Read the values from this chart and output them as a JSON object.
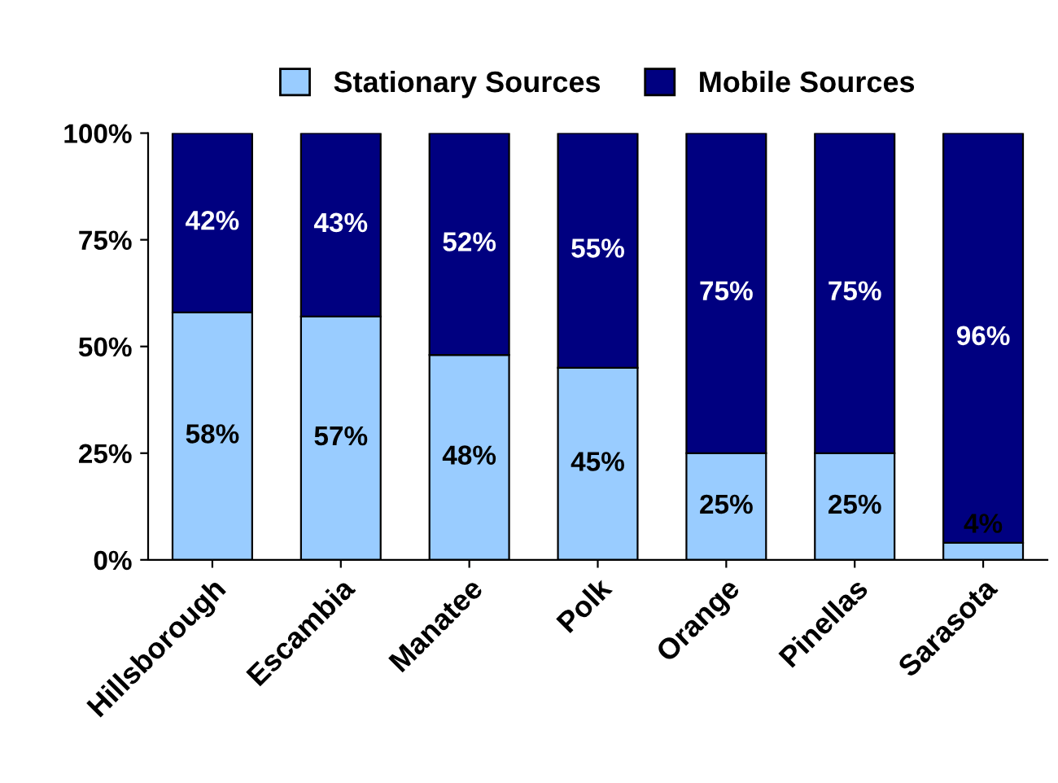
{
  "chart_data": {
    "type": "bar",
    "stacked": true,
    "categories": [
      "Hillsborough",
      "Escambia",
      "Manatee",
      "Polk",
      "Orange",
      "Pinellas",
      "Sarasota"
    ],
    "series": [
      {
        "name": "Stationary Sources",
        "color": "#99ccff",
        "values": [
          58,
          57,
          48,
          45,
          25,
          25,
          4
        ],
        "value_labels": [
          "58%",
          "57%",
          "48%",
          "45%",
          "25%",
          "25%",
          "4%"
        ]
      },
      {
        "name": "Mobile Sources",
        "color": "#000080",
        "values": [
          42,
          43,
          52,
          55,
          75,
          75,
          96
        ],
        "value_labels": [
          "42%",
          "43%",
          "52%",
          "55%",
          "75%",
          "75%",
          "96%"
        ]
      }
    ],
    "ylim": [
      0,
      100
    ],
    "yticks": [
      {
        "value": 0,
        "label": "0%"
      },
      {
        "value": 25,
        "label": "25%"
      },
      {
        "value": 50,
        "label": "50%"
      },
      {
        "value": 75,
        "label": "75%"
      },
      {
        "value": 100,
        "label": "100%"
      }
    ],
    "grid": false,
    "legend": "top"
  }
}
